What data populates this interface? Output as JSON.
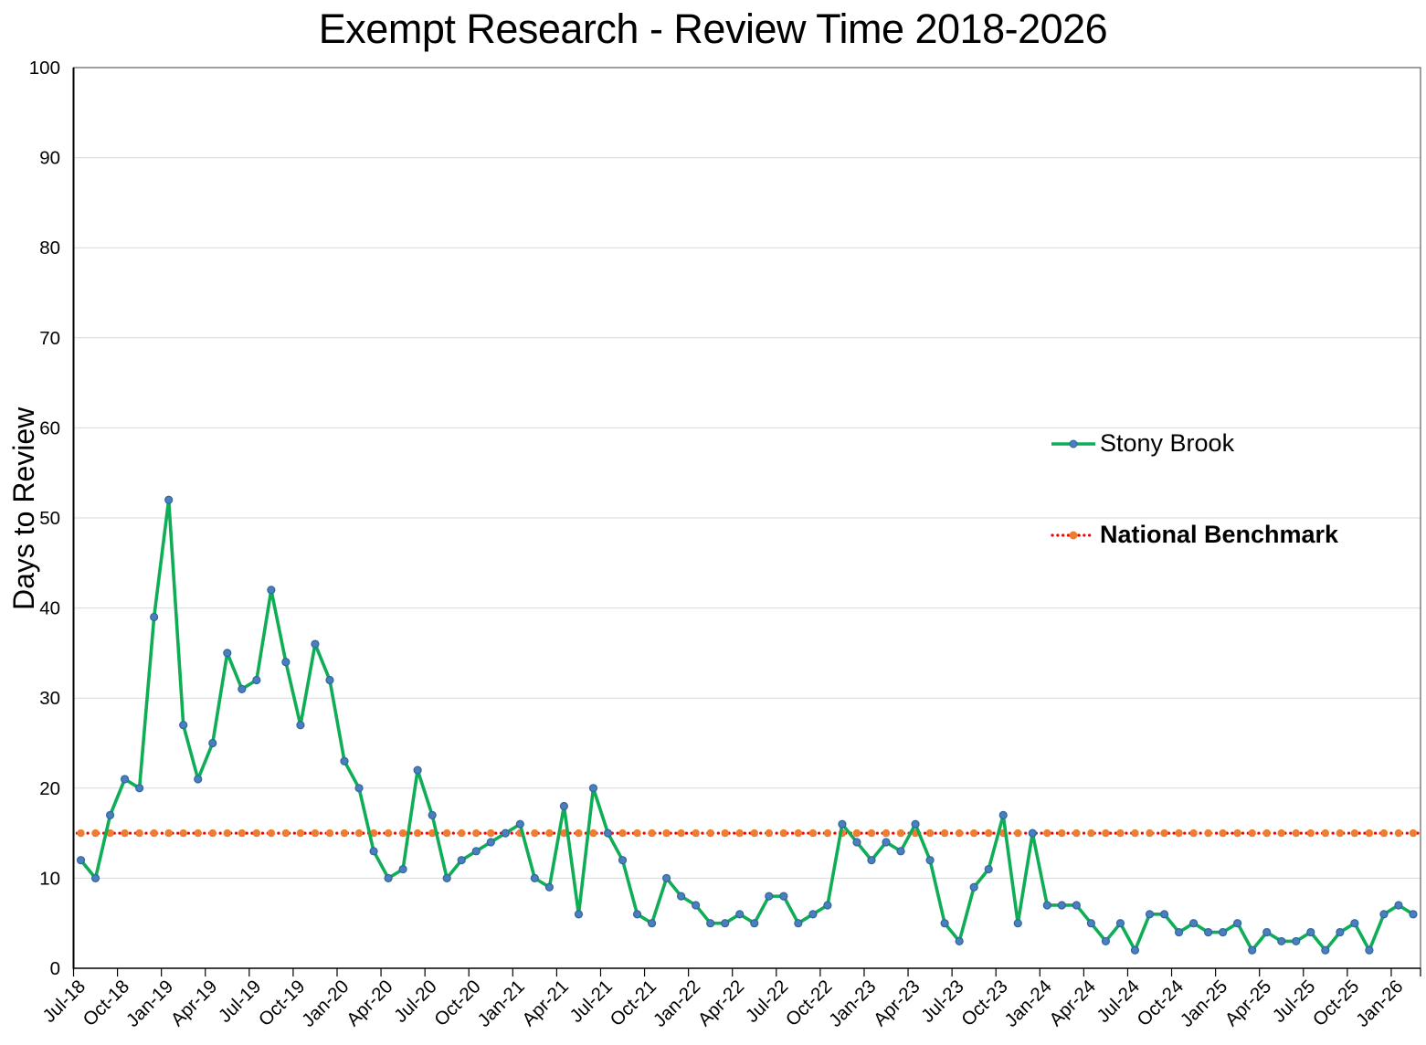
{
  "title": "Exempt Research - Review Time 2018-2026",
  "y_axis": {
    "title": "Days to Review",
    "min": 0,
    "max": 100,
    "tick_step": 10
  },
  "x_axis": {
    "label_every_n_months": 3,
    "first_label": "Jul-18",
    "last_label": "Jan-26"
  },
  "legend": [
    {
      "label": "Stony Brook",
      "style": "solid-line-with-marker"
    },
    {
      "label": "National Benchmark",
      "style": "dotted-line-with-marker",
      "bold": true
    }
  ],
  "colors": {
    "stony_line": "#0FAD55",
    "stony_marker_fill": "#4A7EBD",
    "stony_marker_stroke": "#30669C",
    "benchmark_line": "#FF0000",
    "benchmark_marker": "#ED7D31",
    "gridline": "#D9D9D9",
    "axis": "#000000",
    "plot_border": "#404040"
  },
  "chart_data": {
    "type": "line",
    "title": "Exempt Research - Review Time 2018-2026",
    "xlabel": "",
    "ylabel": "Days to Review",
    "ylim": [
      0,
      100
    ],
    "ytick_step": 10,
    "grid": "horizontal",
    "legend_position": "right-inside",
    "x": [
      "Jul-18",
      "Aug-18",
      "Sep-18",
      "Oct-18",
      "Nov-18",
      "Dec-18",
      "Jan-19",
      "Feb-19",
      "Mar-19",
      "Apr-19",
      "May-19",
      "Jun-19",
      "Jul-19",
      "Aug-19",
      "Sep-19",
      "Oct-19",
      "Nov-19",
      "Dec-19",
      "Jan-20",
      "Feb-20",
      "Mar-20",
      "Apr-20",
      "May-20",
      "Jun-20",
      "Jul-20",
      "Aug-20",
      "Sep-20",
      "Oct-20",
      "Nov-20",
      "Dec-20",
      "Jan-21",
      "Feb-21",
      "Mar-21",
      "Apr-21",
      "May-21",
      "Jun-21",
      "Jul-21",
      "Aug-21",
      "Sep-21",
      "Oct-21",
      "Nov-21",
      "Dec-21",
      "Jan-22",
      "Feb-22",
      "Mar-22",
      "Apr-22",
      "May-22",
      "Jun-22",
      "Jul-22",
      "Aug-22",
      "Sep-22",
      "Oct-22",
      "Nov-22",
      "Dec-22",
      "Jan-23",
      "Feb-23",
      "Mar-23",
      "Apr-23",
      "May-23",
      "Jun-23",
      "Jul-23",
      "Aug-23",
      "Sep-23",
      "Oct-23",
      "Nov-23",
      "Dec-23",
      "Jan-24",
      "Feb-24",
      "Mar-24",
      "Apr-24",
      "May-24",
      "Jun-24",
      "Jul-24",
      "Aug-24",
      "Sep-24",
      "Oct-24",
      "Nov-24",
      "Dec-24",
      "Jan-25",
      "Feb-25",
      "Mar-25",
      "Apr-25",
      "May-25",
      "Jun-25",
      "Jul-25",
      "Aug-25",
      "Sep-25",
      "Oct-25",
      "Nov-25",
      "Dec-25",
      "Jan-26",
      "Feb-26"
    ],
    "series": [
      {
        "name": "Stony Brook",
        "values": [
          12,
          10,
          17,
          21,
          20,
          39,
          52,
          27,
          21,
          25,
          35,
          31,
          32,
          42,
          34,
          27,
          36,
          32,
          23,
          20,
          13,
          10,
          11,
          22,
          17,
          10,
          12,
          13,
          14,
          15,
          16,
          10,
          9,
          18,
          6,
          20,
          15,
          12,
          6,
          5,
          10,
          8,
          7,
          5,
          5,
          6,
          5,
          8,
          8,
          5,
          6,
          7,
          16,
          14,
          12,
          14,
          13,
          16,
          12,
          5,
          3,
          9,
          11,
          17,
          5,
          15,
          7,
          7,
          7,
          5,
          3,
          5,
          2,
          6,
          6,
          4,
          5,
          4,
          4,
          5,
          2,
          4,
          3,
          3,
          4,
          2,
          4,
          5,
          2,
          6,
          7,
          6
        ]
      },
      {
        "name": "National Benchmark",
        "constant": 15
      }
    ]
  }
}
